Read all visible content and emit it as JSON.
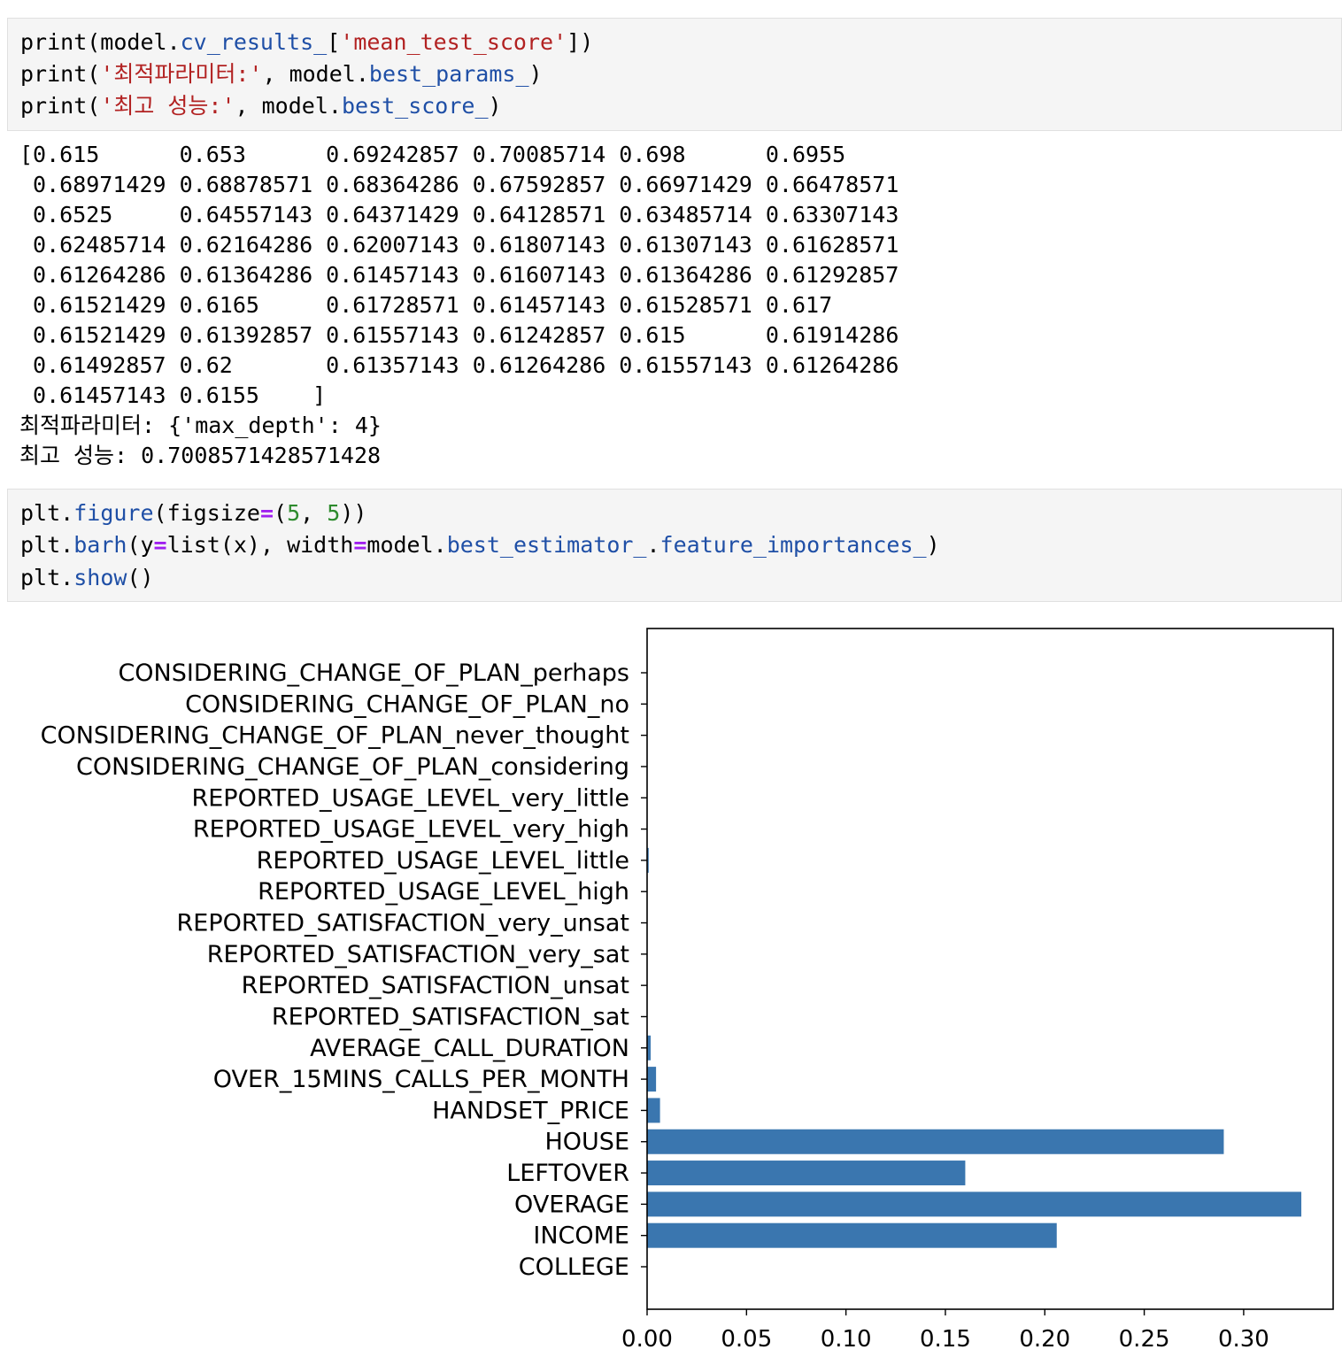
{
  "cell1": {
    "lines": [
      [
        {
          "t": "print(model.",
          "c": "kw"
        },
        {
          "t": "cv_results_",
          "c": "attr"
        },
        {
          "t": "[",
          "c": "kw"
        },
        {
          "t": "'mean_test_score'",
          "c": "str"
        },
        {
          "t": "])",
          "c": "kw"
        }
      ],
      [
        {
          "t": "print(",
          "c": "kw"
        },
        {
          "t": "'최적파라미터:'",
          "c": "str"
        },
        {
          "t": ", model.",
          "c": "kw"
        },
        {
          "t": "best_params_",
          "c": "attr"
        },
        {
          "t": ")",
          "c": "kw"
        }
      ],
      [
        {
          "t": "print(",
          "c": "kw"
        },
        {
          "t": "'최고 성능:'",
          "c": "str"
        },
        {
          "t": ", model.",
          "c": "kw"
        },
        {
          "t": "best_score_",
          "c": "attr"
        },
        {
          "t": ")",
          "c": "kw"
        }
      ]
    ]
  },
  "output1": {
    "array_lines": [
      "[0.615      0.653      0.69242857 0.70085714 0.698      0.6955",
      " 0.68971429 0.68878571 0.68364286 0.67592857 0.66971429 0.66478571",
      " 0.6525     0.64557143 0.64371429 0.64128571 0.63485714 0.63307143",
      " 0.62485714 0.62164286 0.62007143 0.61807143 0.61307143 0.61628571",
      " 0.61264286 0.61364286 0.61457143 0.61607143 0.61364286 0.61292857",
      " 0.61521429 0.6165     0.61728571 0.61457143 0.61528571 0.617",
      " 0.61521429 0.61392857 0.61557143 0.61242857 0.615      0.61914286",
      " 0.61492857 0.62       0.61357143 0.61264286 0.61557143 0.61264286",
      " 0.61457143 0.6155    ]"
    ],
    "best_params_line": "최적파라미터: {'max_depth': 4}",
    "best_score_line": "최고 성능: 0.7008571428571428"
  },
  "cell2": {
    "lines": [
      [
        {
          "t": "plt.",
          "c": "kw"
        },
        {
          "t": "figure",
          "c": "attr"
        },
        {
          "t": "(figsize",
          "c": "kw"
        },
        {
          "t": "=",
          "c": "op"
        },
        {
          "t": "(",
          "c": "kw"
        },
        {
          "t": "5",
          "c": "num"
        },
        {
          "t": ", ",
          "c": "kw"
        },
        {
          "t": "5",
          "c": "num"
        },
        {
          "t": "))",
          "c": "kw"
        }
      ],
      [
        {
          "t": "plt.",
          "c": "kw"
        },
        {
          "t": "barh",
          "c": "attr"
        },
        {
          "t": "(y",
          "c": "kw"
        },
        {
          "t": "=",
          "c": "op"
        },
        {
          "t": "list(x), width",
          "c": "kw"
        },
        {
          "t": "=",
          "c": "op"
        },
        {
          "t": "model.",
          "c": "kw"
        },
        {
          "t": "best_estimator_",
          "c": "attr"
        },
        {
          "t": ".",
          "c": "kw"
        },
        {
          "t": "feature_importances_",
          "c": "attr"
        },
        {
          "t": ")",
          "c": "kw"
        }
      ],
      [
        {
          "t": "plt.",
          "c": "kw"
        },
        {
          "t": "show",
          "c": "attr"
        },
        {
          "t": "()",
          "c": "kw"
        }
      ]
    ]
  },
  "colors": {
    "bar": "#3a76af",
    "cell_bg": "#f5f5f5",
    "string": "#b22222",
    "attribute": "#1f4fa6",
    "number": "#2e8b2e",
    "operator": "#a020f0"
  },
  "chart_data": {
    "type": "bar",
    "orientation": "horizontal",
    "categories": [
      "COLLEGE",
      "INCOME",
      "OVERAGE",
      "LEFTOVER",
      "HOUSE",
      "HANDSET_PRICE",
      "OVER_15MINS_CALLS_PER_MONTH",
      "AVERAGE_CALL_DURATION",
      "REPORTED_SATISFACTION_sat",
      "REPORTED_SATISFACTION_unsat",
      "REPORTED_SATISFACTION_very_sat",
      "REPORTED_SATISFACTION_very_unsat",
      "REPORTED_USAGE_LEVEL_high",
      "REPORTED_USAGE_LEVEL_little",
      "REPORTED_USAGE_LEVEL_very_high",
      "REPORTED_USAGE_LEVEL_very_little",
      "CONSIDERING_CHANGE_OF_PLAN_considering",
      "CONSIDERING_CHANGE_OF_PLAN_never_thought",
      "CONSIDERING_CHANGE_OF_PLAN_no",
      "CONSIDERING_CHANGE_OF_PLAN_perhaps"
    ],
    "values": [
      0.0,
      0.206,
      0.329,
      0.16,
      0.29,
      0.0065,
      0.0045,
      0.0018,
      0.0,
      0.0,
      0.0,
      0.0,
      0.0,
      0.0008,
      0.0,
      0.0,
      0.0,
      0.0,
      0.0,
      0.0
    ],
    "xticks": [
      "0.00",
      "0.05",
      "0.10",
      "0.15",
      "0.20",
      "0.25",
      "0.30"
    ],
    "xlim": [
      0.0,
      0.345
    ],
    "title": "",
    "xlabel": "",
    "ylabel": "",
    "grid": false
  }
}
